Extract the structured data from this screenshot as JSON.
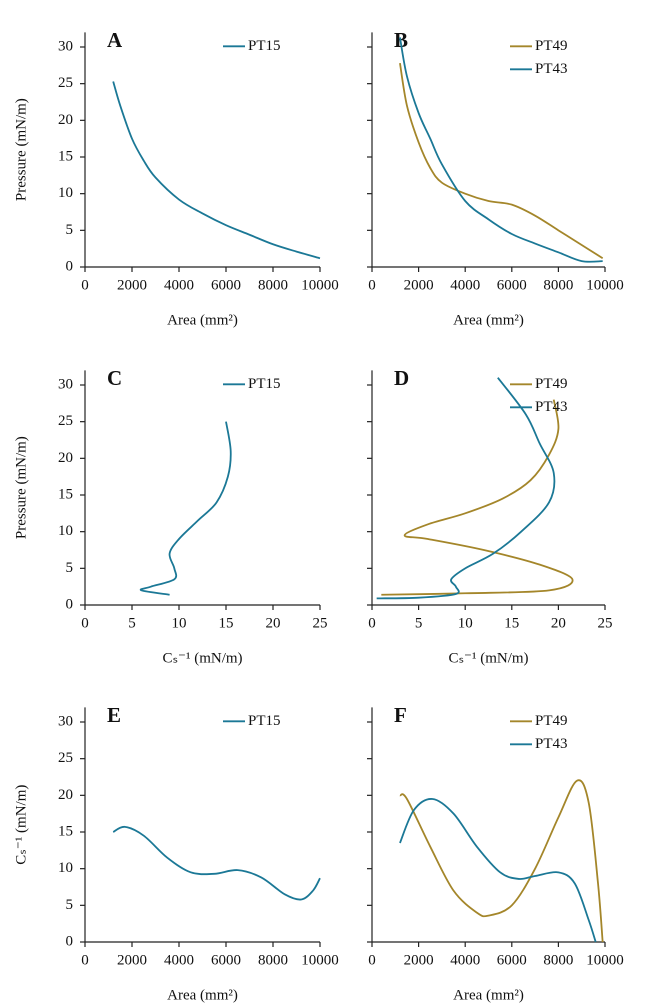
{
  "chart_data": [
    {
      "type": "line",
      "title": "A",
      "xlabel": "Area (mm²)",
      "ylabel": "Pressure (mN/m)",
      "xlim": [
        0,
        10000
      ],
      "xticks": [
        0,
        2000,
        4000,
        6000,
        8000,
        10000
      ],
      "ylim": [
        0,
        32
      ],
      "yticks": [
        0,
        5,
        10,
        15,
        20,
        25,
        30
      ],
      "legend": "upper right",
      "series": [
        {
          "name": "PT15",
          "color": "#1b7896",
          "x": [
            1200,
            1500,
            2000,
            2500,
            3000,
            4000,
            5000,
            6000,
            7000,
            8000,
            9000,
            10000
          ],
          "values": [
            25.3,
            22,
            17.5,
            14.5,
            12.2,
            9.2,
            7.3,
            5.7,
            4.4,
            3.1,
            2.1,
            1.2
          ]
        }
      ]
    },
    {
      "type": "line",
      "title": "B",
      "xlabel": "Area (mm²)",
      "xlim": [
        0,
        10000
      ],
      "xticks": [
        0,
        2000,
        4000,
        6000,
        8000,
        10000
      ],
      "ylim": [
        0,
        32
      ],
      "yticks": [
        0,
        5,
        10,
        15,
        20,
        25,
        30
      ],
      "ytick_labels": false,
      "legend": "upper right",
      "series": [
        {
          "name": "PT49",
          "color": "#a4862a",
          "x": [
            1200,
            1500,
            2000,
            2500,
            3000,
            4000,
            5000,
            6000,
            7000,
            8000,
            9000,
            9900
          ],
          "values": [
            27.8,
            22,
            17,
            13.5,
            11.5,
            10,
            9,
            8.5,
            7,
            5,
            3,
            1.2
          ]
        },
        {
          "name": "PT43",
          "color": "#1b7896",
          "x": [
            1200,
            1500,
            2000,
            2500,
            3000,
            4000,
            5000,
            6000,
            7000,
            8000,
            9000,
            9900
          ],
          "values": [
            31.3,
            26,
            21,
            17.5,
            14,
            9,
            6.5,
            4.5,
            3.2,
            2,
            0.8,
            0.8
          ]
        }
      ]
    },
    {
      "type": "line",
      "title": "C",
      "xlabel": "Cₛ⁻¹ (mN/m)",
      "ylabel": "Pressure (mN/m)",
      "xlim": [
        0,
        25
      ],
      "xticks": [
        0,
        5,
        10,
        15,
        20,
        25
      ],
      "ylim": [
        0,
        32
      ],
      "yticks": [
        0,
        5,
        10,
        15,
        20,
        25,
        30
      ],
      "legend": "upper right",
      "series": [
        {
          "name": "PT15",
          "color": "#1b7896",
          "x": [
            9,
            6,
            7,
            9.5,
            9.5,
            9,
            10,
            12,
            14,
            15.2,
            15.5,
            15
          ],
          "values": [
            1.4,
            2,
            2.5,
            3.5,
            5,
            7,
            9,
            11.5,
            14,
            17.5,
            21,
            25
          ]
        }
      ]
    },
    {
      "type": "line",
      "title": "D",
      "xlabel": "Cₛ⁻¹ (mN/m)",
      "xlim": [
        0,
        25
      ],
      "xticks": [
        0,
        5,
        10,
        15,
        20,
        25
      ],
      "ylim": [
        0,
        32
      ],
      "yticks": [
        0,
        5,
        10,
        15,
        20,
        25,
        30
      ],
      "ytick_labels": false,
      "legend": "upper right",
      "series": [
        {
          "name": "PT49",
          "color": "#a4862a",
          "x": [
            1,
            10,
            19,
            21.5,
            18,
            12,
            6,
            3.5,
            6,
            10,
            14,
            17,
            19,
            20,
            19.5
          ],
          "values": [
            1.4,
            1.6,
            2,
            3.5,
            5.5,
            7.5,
            9,
            9.5,
            11,
            12.5,
            14.5,
            17,
            20.5,
            24,
            28
          ]
        },
        {
          "name": "PT43",
          "color": "#1b7896",
          "x": [
            0.5,
            5,
            9,
            9,
            8.5,
            10,
            13,
            16,
            19,
            19.5,
            18,
            16.5,
            13.5
          ],
          "values": [
            0.9,
            1,
            1.5,
            2.5,
            3.5,
            5,
            7,
            10,
            14,
            18,
            22,
            26,
            31
          ]
        }
      ]
    },
    {
      "type": "line",
      "title": "E",
      "xlabel": "Area (mm²)",
      "ylabel": "Cₛ⁻¹ (mN/m)",
      "xlim": [
        0,
        10000
      ],
      "xticks": [
        0,
        2000,
        4000,
        6000,
        8000,
        10000
      ],
      "ylim": [
        0,
        32
      ],
      "yticks": [
        0,
        5,
        10,
        15,
        20,
        25,
        30
      ],
      "legend": "upper right",
      "series": [
        {
          "name": "PT15",
          "color": "#1b7896",
          "x": [
            1200,
            1700,
            2500,
            3500,
            4500,
            5500,
            6500,
            7500,
            8500,
            9200,
            9700,
            10000
          ],
          "values": [
            15,
            15.7,
            14.5,
            11.5,
            9.5,
            9.3,
            9.8,
            8.8,
            6.5,
            5.8,
            7,
            8.7
          ]
        }
      ]
    },
    {
      "type": "line",
      "title": "F",
      "xlabel": "Area (mm²)",
      "xlim": [
        0,
        10000
      ],
      "xticks": [
        0,
        2000,
        4000,
        6000,
        8000,
        10000
      ],
      "ylim": [
        0,
        32
      ],
      "yticks": [
        0,
        5,
        10,
        15,
        20,
        25,
        30
      ],
      "ytick_labels": false,
      "legend": "upper right",
      "series": [
        {
          "name": "PT49",
          "color": "#a4862a",
          "x": [
            1200,
            1500,
            2500,
            3500,
            4500,
            5000,
            6000,
            7000,
            8000,
            8800,
            9300,
            9700,
            9900
          ],
          "values": [
            20,
            19.5,
            13,
            7,
            4,
            3.6,
            5,
            10,
            17,
            22,
            19,
            8,
            0
          ]
        },
        {
          "name": "PT43",
          "color": "#1b7896",
          "x": [
            1200,
            1800,
            2600,
            3500,
            4500,
            5500,
            6300,
            7000,
            8000,
            8700,
            9300,
            9600
          ],
          "values": [
            13.5,
            18,
            19.5,
            17.5,
            13,
            9.5,
            8.6,
            9,
            9.5,
            8,
            3,
            0
          ]
        }
      ]
    }
  ]
}
